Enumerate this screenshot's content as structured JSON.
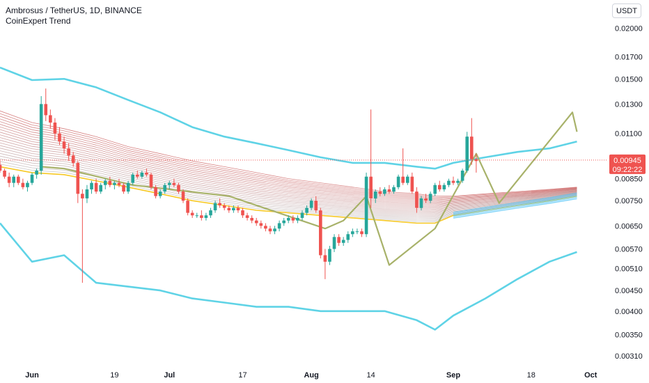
{
  "header": {
    "title": "Ambrosus / TetherUS, 1D, BINANCE",
    "indicator": "CoinExpert Trend",
    "currency_button": "USDT"
  },
  "colors": {
    "up": "#26a69a",
    "down": "#ef5350",
    "bands": "#5fd3e6",
    "zigzag": "#a8b26a",
    "ribbon_upper": "#b71c1c",
    "ribbon_lower": "#9e9e9e",
    "ribbon_gold": "#f5c518",
    "ribbon_cyan": "#4fc3f7",
    "price_tag": "#ef5350"
  },
  "price_tag": {
    "price": "0.00945",
    "countdown": "09:22:22"
  },
  "chart_data": {
    "type": "candlestick",
    "title": "Ambrosus / TetherUS, 1D, BINANCE",
    "indicator": "CoinExpert Trend",
    "y_scale": "log",
    "ylim": [
      0.0029,
      0.0235
    ],
    "y_ticks": [
      "0.02000",
      "0.01700",
      "0.01500",
      "0.01300",
      "0.01100",
      "0.00945",
      "0.00850",
      "0.00750",
      "0.00650",
      "0.00570",
      "0.00510",
      "0.00450",
      "0.00400",
      "0.00350",
      "0.00310"
    ],
    "x_ticks": [
      {
        "label": "Jun",
        "date": "2023-06-01",
        "major": true
      },
      {
        "label": "19",
        "date": "2023-06-19",
        "major": false
      },
      {
        "label": "Jul",
        "date": "2023-07-01",
        "major": true
      },
      {
        "label": "17",
        "date": "2023-07-17",
        "major": false
      },
      {
        "label": "Aug",
        "date": "2023-08-01",
        "major": true
      },
      {
        "label": "14",
        "date": "2023-08-14",
        "major": false
      },
      {
        "label": "Sep",
        "date": "2023-09-01",
        "major": true
      },
      {
        "label": "18",
        "date": "2023-09-18",
        "major": false
      },
      {
        "label": "Oct",
        "date": "2023-10-01",
        "major": true
      }
    ],
    "x_range": [
      "2023-05-25",
      "2023-10-04"
    ],
    "candles": {
      "start_date": "2023-05-25",
      "ohlc": [
        [
          0.0092,
          0.0094,
          0.0088,
          0.0089
        ],
        [
          0.0089,
          0.009,
          0.0085,
          0.0086
        ],
        [
          0.0086,
          0.0088,
          0.0081,
          0.0083
        ],
        [
          0.0083,
          0.0087,
          0.0081,
          0.0086
        ],
        [
          0.0086,
          0.0087,
          0.0082,
          0.0083
        ],
        [
          0.0083,
          0.0085,
          0.008,
          0.0081
        ],
        [
          0.0081,
          0.0084,
          0.0079,
          0.0083
        ],
        [
          0.0083,
          0.0088,
          0.0082,
          0.0087
        ],
        [
          0.0087,
          0.009,
          0.0085,
          0.0089
        ],
        [
          0.0089,
          0.0136,
          0.0087,
          0.013
        ],
        [
          0.013,
          0.0142,
          0.0118,
          0.0122
        ],
        [
          0.0122,
          0.0126,
          0.0113,
          0.0117
        ],
        [
          0.0117,
          0.012,
          0.0106,
          0.011
        ],
        [
          0.011,
          0.0114,
          0.0103,
          0.0105
        ],
        [
          0.0105,
          0.0108,
          0.0098,
          0.0101
        ],
        [
          0.0101,
          0.0104,
          0.0094,
          0.0097
        ],
        [
          0.0097,
          0.0099,
          0.0091,
          0.0093
        ],
        [
          0.0093,
          0.0094,
          0.0074,
          0.0078
        ],
        [
          0.0078,
          0.008,
          0.0047,
          0.0076
        ],
        [
          0.0076,
          0.0082,
          0.0074,
          0.008
        ],
        [
          0.008,
          0.0084,
          0.0078,
          0.0083
        ],
        [
          0.0083,
          0.0085,
          0.0078,
          0.0079
        ],
        [
          0.0079,
          0.0083,
          0.0078,
          0.0082
        ],
        [
          0.0082,
          0.0085,
          0.008,
          0.0084
        ],
        [
          0.0084,
          0.0086,
          0.0081,
          0.0082
        ],
        [
          0.0082,
          0.0084,
          0.008,
          0.0083
        ],
        [
          0.0083,
          0.0085,
          0.0081,
          0.0082
        ],
        [
          0.0082,
          0.0083,
          0.0078,
          0.0079
        ],
        [
          0.0079,
          0.0084,
          0.0078,
          0.0083
        ],
        [
          0.0083,
          0.0088,
          0.0082,
          0.0087
        ],
        [
          0.0087,
          0.0089,
          0.0085,
          0.0086
        ],
        [
          0.0086,
          0.0089,
          0.0085,
          0.0088
        ],
        [
          0.0088,
          0.009,
          0.0086,
          0.0087
        ],
        [
          0.0087,
          0.0088,
          0.008,
          0.0081
        ],
        [
          0.0081,
          0.0082,
          0.0076,
          0.0077
        ],
        [
          0.0077,
          0.008,
          0.0076,
          0.0079
        ],
        [
          0.0079,
          0.0083,
          0.0078,
          0.0082
        ],
        [
          0.0082,
          0.0084,
          0.008,
          0.0083
        ],
        [
          0.0083,
          0.0085,
          0.0081,
          0.0082
        ],
        [
          0.0082,
          0.0083,
          0.0078,
          0.0079
        ],
        [
          0.0079,
          0.008,
          0.0074,
          0.0075
        ],
        [
          0.0075,
          0.0076,
          0.0069,
          0.007
        ],
        [
          0.007,
          0.0071,
          0.0068,
          0.0069
        ],
        [
          0.0069,
          0.007,
          0.0068,
          0.0069
        ],
        [
          0.0069,
          0.0071,
          0.0067,
          0.0068
        ],
        [
          0.0068,
          0.007,
          0.0067,
          0.0069
        ],
        [
          0.0069,
          0.0072,
          0.0068,
          0.0071
        ],
        [
          0.0071,
          0.0075,
          0.007,
          0.0074
        ],
        [
          0.0074,
          0.0076,
          0.0072,
          0.0073
        ],
        [
          0.0073,
          0.0074,
          0.0071,
          0.0072
        ],
        [
          0.0072,
          0.0073,
          0.007,
          0.0071
        ],
        [
          0.0071,
          0.0073,
          0.007,
          0.0072
        ],
        [
          0.0072,
          0.0073,
          0.007,
          0.0071
        ],
        [
          0.0071,
          0.0072,
          0.0068,
          0.0069
        ],
        [
          0.0069,
          0.007,
          0.0067,
          0.0068
        ],
        [
          0.0068,
          0.0069,
          0.0066,
          0.0067
        ],
        [
          0.0067,
          0.0068,
          0.0065,
          0.0066
        ],
        [
          0.0066,
          0.0067,
          0.0064,
          0.0065
        ],
        [
          0.0065,
          0.0066,
          0.0063,
          0.0064
        ],
        [
          0.0064,
          0.0065,
          0.0062,
          0.0063
        ],
        [
          0.0063,
          0.0065,
          0.0062,
          0.0064
        ],
        [
          0.0064,
          0.0067,
          0.0063,
          0.0066
        ],
        [
          0.0066,
          0.0068,
          0.0065,
          0.0067
        ],
        [
          0.0067,
          0.0069,
          0.0066,
          0.0068
        ],
        [
          0.0068,
          0.0069,
          0.0066,
          0.0067
        ],
        [
          0.0067,
          0.0069,
          0.0066,
          0.0068
        ],
        [
          0.0068,
          0.0071,
          0.0067,
          0.007
        ],
        [
          0.007,
          0.0073,
          0.0069,
          0.0072
        ],
        [
          0.0072,
          0.0076,
          0.0071,
          0.0075
        ],
        [
          0.0075,
          0.0077,
          0.007,
          0.0071
        ],
        [
          0.0071,
          0.0072,
          0.0054,
          0.0055
        ],
        [
          0.0055,
          0.0057,
          0.0048,
          0.0053
        ],
        [
          0.0053,
          0.0058,
          0.0052,
          0.0057
        ],
        [
          0.0057,
          0.0062,
          0.0056,
          0.0061
        ],
        [
          0.0061,
          0.0062,
          0.0058,
          0.0059
        ],
        [
          0.0059,
          0.0061,
          0.0058,
          0.006
        ],
        [
          0.006,
          0.0063,
          0.0059,
          0.0062
        ],
        [
          0.0062,
          0.0064,
          0.0061,
          0.0063
        ],
        [
          0.0063,
          0.0064,
          0.0062,
          0.0063
        ],
        [
          0.0063,
          0.0064,
          0.0061,
          0.0062
        ],
        [
          0.0062,
          0.0088,
          0.0061,
          0.0086
        ],
        [
          0.0086,
          0.0126,
          0.0072,
          0.0076
        ],
        [
          0.0076,
          0.008,
          0.0074,
          0.0079
        ],
        [
          0.0079,
          0.0081,
          0.0077,
          0.0078
        ],
        [
          0.0078,
          0.0081,
          0.0077,
          0.008
        ],
        [
          0.008,
          0.0082,
          0.0078,
          0.0079
        ],
        [
          0.0079,
          0.0082,
          0.0078,
          0.0081
        ],
        [
          0.0081,
          0.0087,
          0.008,
          0.0086
        ],
        [
          0.0086,
          0.0101,
          0.0082,
          0.0083
        ],
        [
          0.0083,
          0.0087,
          0.0082,
          0.0086
        ],
        [
          0.0086,
          0.0088,
          0.0078,
          0.0079
        ],
        [
          0.0079,
          0.0081,
          0.007,
          0.0072
        ],
        [
          0.0072,
          0.0077,
          0.0071,
          0.0076
        ],
        [
          0.0076,
          0.0078,
          0.0074,
          0.0075
        ],
        [
          0.0075,
          0.0079,
          0.0074,
          0.0078
        ],
        [
          0.0078,
          0.0083,
          0.0077,
          0.0082
        ],
        [
          0.0082,
          0.0084,
          0.0079,
          0.008
        ],
        [
          0.008,
          0.0083,
          0.0079,
          0.0082
        ],
        [
          0.0082,
          0.0085,
          0.0081,
          0.0084
        ],
        [
          0.0084,
          0.0086,
          0.0082,
          0.0083
        ],
        [
          0.0083,
          0.0085,
          0.0082,
          0.0084
        ],
        [
          0.0084,
          0.009,
          0.0083,
          0.0089
        ],
        [
          0.0089,
          0.0111,
          0.0088,
          0.0108
        ],
        [
          0.0108,
          0.012,
          0.0092,
          0.0095
        ],
        [
          0.0095,
          0.0098,
          0.0088,
          0.0094
        ]
      ]
    },
    "bands": {
      "dates": [
        "2023-05-25",
        "2023-06-01",
        "2023-06-08",
        "2023-06-15",
        "2023-06-22",
        "2023-06-29",
        "2023-07-06",
        "2023-07-13",
        "2023-07-20",
        "2023-07-27",
        "2023-08-03",
        "2023-08-10",
        "2023-08-17",
        "2023-08-24",
        "2023-08-28",
        "2023-09-01",
        "2023-09-08",
        "2023-09-15",
        "2023-09-22",
        "2023-09-28"
      ],
      "upper": [
        0.016,
        0.0149,
        0.015,
        0.0143,
        0.0133,
        0.0124,
        0.0114,
        0.0108,
        0.0104,
        0.01,
        0.0096,
        0.0093,
        0.0093,
        0.0091,
        0.009,
        0.0093,
        0.0096,
        0.0099,
        0.0101,
        0.0105
      ],
      "lower": [
        0.0066,
        0.0053,
        0.0055,
        0.0047,
        0.0046,
        0.0045,
        0.0043,
        0.0042,
        0.0041,
        0.0041,
        0.004,
        0.004,
        0.004,
        0.0038,
        0.0036,
        0.0039,
        0.0043,
        0.0048,
        0.0053,
        0.0056
      ]
    },
    "ribbon": {
      "dates": [
        "2023-05-25",
        "2023-06-01",
        "2023-06-08",
        "2023-06-15",
        "2023-06-22",
        "2023-06-29",
        "2023-07-06",
        "2023-07-13",
        "2023-07-20",
        "2023-07-27",
        "2023-08-03",
        "2023-08-10",
        "2023-08-17",
        "2023-08-24",
        "2023-08-28",
        "2023-09-01",
        "2023-09-08",
        "2023-09-15",
        "2023-09-22",
        "2023-09-28"
      ],
      "upper": [
        0.0125,
        0.0117,
        0.0113,
        0.0108,
        0.0102,
        0.0098,
        0.0094,
        0.0091,
        0.0088,
        0.0085,
        0.0083,
        0.0081,
        0.0079,
        0.0078,
        0.0077,
        0.0077,
        0.0078,
        0.0079,
        0.008,
        0.0081
      ],
      "lower": [
        0.0091,
        0.0088,
        0.0087,
        0.0084,
        0.0081,
        0.0078,
        0.0075,
        0.0073,
        0.0071,
        0.007,
        0.0069,
        0.0068,
        0.0067,
        0.0066,
        0.0066,
        0.0069,
        0.0071,
        0.0073,
        0.0075,
        0.0077
      ]
    },
    "zigzag": {
      "points": [
        [
          "2023-06-03",
          0.0091
        ],
        [
          "2023-06-08",
          0.009
        ],
        [
          "2023-06-23",
          0.0082
        ],
        [
          "2023-07-14",
          0.0077
        ],
        [
          "2023-08-04",
          0.0064
        ],
        [
          "2023-08-08",
          0.0067
        ],
        [
          "2023-08-13",
          0.0077
        ],
        [
          "2023-08-18",
          0.0052
        ],
        [
          "2023-08-28",
          0.0064
        ],
        [
          "2023-09-06",
          0.0098
        ],
        [
          "2023-09-11",
          0.0074
        ],
        [
          "2023-09-27",
          0.0124
        ],
        [
          "2023-09-28",
          0.0111
        ]
      ]
    },
    "last_price_line": 0.00945
  }
}
